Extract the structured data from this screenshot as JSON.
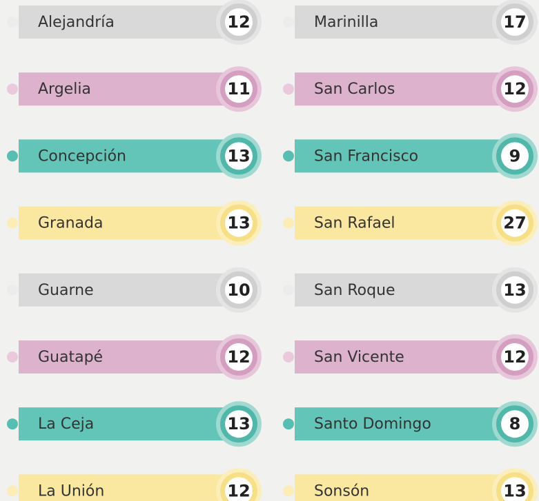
{
  "columns": [
    {
      "items": [
        {
          "name": "Alejandría",
          "count": "12"
        },
        {
          "name": "Argelia",
          "count": "11"
        },
        {
          "name": "Concepción",
          "count": "13"
        },
        {
          "name": "Granada",
          "count": "13"
        },
        {
          "name": "Guarne",
          "count": "10"
        },
        {
          "name": "Guatapé",
          "count": "12"
        },
        {
          "name": "La Ceja",
          "count": "13"
        },
        {
          "name": "La Unión",
          "count": "12"
        }
      ]
    },
    {
      "items": [
        {
          "name": "Marinilla",
          "count": "17"
        },
        {
          "name": "San Carlos",
          "count": "12"
        },
        {
          "name": "San Francisco",
          "count": "9"
        },
        {
          "name": "San Rafael",
          "count": "27"
        },
        {
          "name": "San Roque",
          "count": "13"
        },
        {
          "name": "San Vicente",
          "count": "12"
        },
        {
          "name": "Santo Domingo",
          "count": "8"
        },
        {
          "name": "Sonsón",
          "count": "13"
        }
      ]
    }
  ]
}
